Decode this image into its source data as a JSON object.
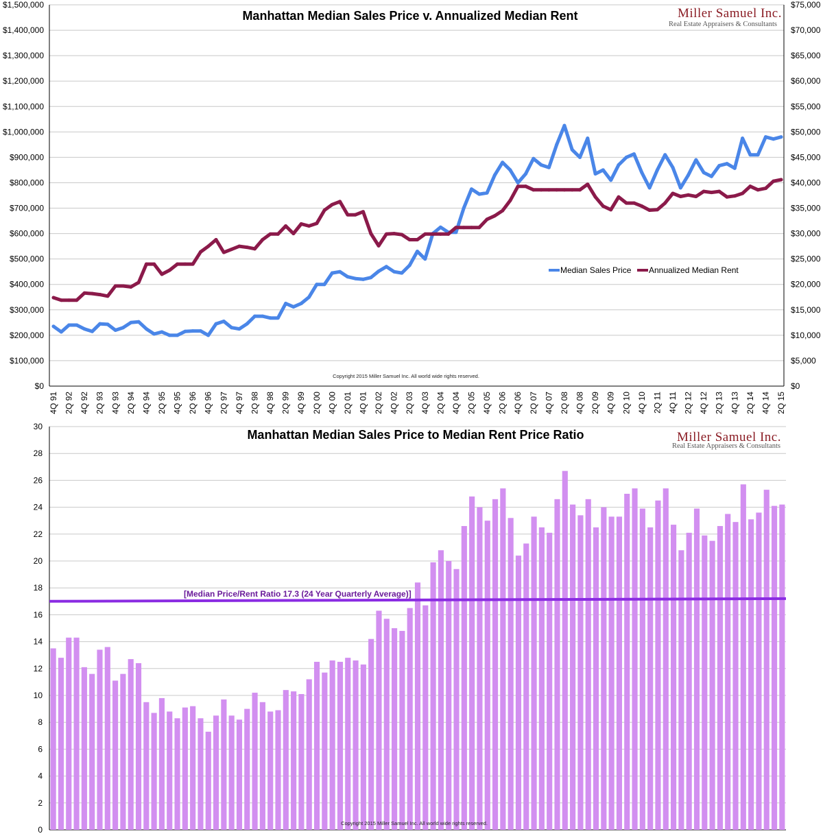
{
  "chart_data": [
    {
      "type": "line",
      "title": "Manhattan Median Sales Price v. Annualized Median Rent",
      "brand": {
        "name": "Miller Samuel Inc.",
        "tagline": "Real Estate Appraisers & Consultants"
      },
      "copyright": "Copyright 2015 Miller Samuel Inc. All world wide rights reserved.",
      "x_tick_labels": [
        "4Q 91",
        "2Q 92",
        "4Q 92",
        "2Q 93",
        "4Q 93",
        "2Q 94",
        "4Q 94",
        "2Q 95",
        "4Q 95",
        "2Q 96",
        "4Q 96",
        "2Q 97",
        "4Q 97",
        "2Q 98",
        "4Q 98",
        "2Q 99",
        "4Q 99",
        "2Q 00",
        "4Q 00",
        "2Q 01",
        "4Q 01",
        "2Q 02",
        "4Q 02",
        "2Q 03",
        "4Q 03",
        "2Q 04",
        "4Q 04",
        "2Q 05",
        "4Q 05",
        "2Q 06",
        "4Q 06",
        "2Q 07",
        "4Q 07",
        "2Q 08",
        "4Q 08",
        "2Q 09",
        "4Q 09",
        "2Q 10",
        "4Q 10",
        "2Q 11",
        "4Q 11",
        "2Q 12",
        "4Q 12",
        "2Q 13",
        "4Q 13",
        "2Q 14",
        "4Q 14",
        "2Q 15"
      ],
      "y_left": {
        "min": 0,
        "max": 1500000,
        "step": 100000,
        "tick_labels": [
          "$0",
          "$100,000",
          "$200,000",
          "$300,000",
          "$400,000",
          "$500,000",
          "$600,000",
          "$700,000",
          "$800,000",
          "$900,000",
          "$1,000,000",
          "$1,100,000",
          "$1,200,000",
          "$1,300,000",
          "$1,400,000",
          "$1,500,000"
        ]
      },
      "y_right": {
        "min": 0,
        "max": 75000,
        "step": 5000,
        "tick_labels": [
          "$0",
          "$5,000",
          "$10,000",
          "$15,000",
          "$20,000",
          "$25,000",
          "$30,000",
          "$35,000",
          "$40,000",
          "$45,000",
          "$50,000",
          "$55,000",
          "$60,000",
          "$65,000",
          "$70,000",
          "$75,000"
        ]
      },
      "legend_position": "right, inside plot",
      "series": [
        {
          "name": "Median Sales Price",
          "axis": "left",
          "color": "#4a86e8",
          "values": [
            235000,
            213000,
            240000,
            240000,
            225000,
            215000,
            245000,
            243000,
            220000,
            230000,
            250000,
            253000,
            225000,
            205000,
            213000,
            200000,
            200000,
            215000,
            217000,
            217000,
            200000,
            245000,
            255000,
            230000,
            225000,
            245000,
            275000,
            275000,
            268000,
            268000,
            325000,
            312000,
            325000,
            350000,
            400000,
            400000,
            445000,
            450000,
            430000,
            423000,
            420000,
            427000,
            452000,
            470000,
            450000,
            445000,
            475000,
            530000,
            500000,
            600000,
            625000,
            605000,
            605000,
            700000,
            775000,
            755000,
            760000,
            830000,
            880000,
            850000,
            800000,
            835000,
            895000,
            870000,
            860000,
            950000,
            1025000,
            930000,
            900000,
            975000,
            835000,
            850000,
            810000,
            870000,
            900000,
            913000,
            840000,
            780000,
            850000,
            910000,
            860000,
            780000,
            830000,
            890000,
            840000,
            825000,
            867000,
            875000,
            857000,
            975000,
            910000,
            910000,
            980000,
            972000,
            980000
          ]
        },
        {
          "name": "Annualized Median Rent",
          "axis": "right",
          "color": "#8b1a4a",
          "values": [
            17400,
            16900,
            16900,
            16900,
            18300,
            18200,
            18000,
            17700,
            19700,
            19700,
            19500,
            20400,
            24000,
            24000,
            22000,
            22800,
            24000,
            24000,
            24000,
            26400,
            27500,
            28800,
            26300,
            26900,
            27500,
            27300,
            27000,
            28800,
            29900,
            29900,
            31500,
            30000,
            31900,
            31500,
            32000,
            34600,
            35700,
            36300,
            33700,
            33700,
            34300,
            30000,
            27600,
            29900,
            30000,
            29800,
            28800,
            28800,
            29900,
            29900,
            29900,
            29900,
            31200,
            31200,
            31200,
            31200,
            32800,
            33500,
            34500,
            36500,
            39300,
            39300,
            38600,
            38600,
            38600,
            38600,
            38600,
            38600,
            38600,
            39700,
            37200,
            35400,
            34700,
            37200,
            36000,
            36000,
            35400,
            34600,
            34700,
            36000,
            37900,
            37300,
            37600,
            37300,
            38300,
            38100,
            38300,
            37200,
            37400,
            37900,
            39300,
            38600,
            38900,
            40300,
            40600
          ]
        }
      ]
    },
    {
      "type": "bar",
      "title": "Manhattan Median Sales Price to Median Rent Price Ratio",
      "brand": {
        "name": "Miller Samuel Inc.",
        "tagline": "Real Estate Appraisers & Consultants"
      },
      "copyright": "Copyright 2015 Miller Samuel Inc. All world wide rights reserved.",
      "y": {
        "min": 0,
        "max": 30,
        "step": 2,
        "tick_labels": [
          "0",
          "2",
          "4",
          "6",
          "8",
          "10",
          "12",
          "14",
          "16",
          "18",
          "20",
          "22",
          "24",
          "26",
          "28",
          "30"
        ]
      },
      "bar_color": "#d28ff0",
      "values": [
        13.5,
        12.8,
        14.3,
        14.3,
        12.1,
        11.6,
        13.4,
        13.6,
        11.1,
        11.6,
        12.7,
        12.4,
        9.5,
        8.7,
        9.8,
        8.8,
        8.3,
        9.1,
        9.2,
        8.3,
        7.3,
        8.5,
        9.7,
        8.5,
        8.2,
        9.0,
        10.2,
        9.5,
        8.8,
        8.9,
        10.4,
        10.3,
        10.1,
        11.2,
        12.5,
        11.7,
        12.6,
        12.5,
        12.8,
        12.6,
        12.3,
        14.2,
        16.3,
        15.7,
        15.0,
        14.8,
        16.5,
        18.4,
        16.7,
        19.9,
        20.8,
        20.0,
        19.4,
        22.6,
        24.8,
        24.0,
        23.0,
        24.6,
        25.4,
        23.2,
        20.4,
        21.3,
        23.3,
        22.5,
        22.1,
        24.6,
        26.7,
        24.2,
        23.4,
        24.6,
        22.5,
        24.0,
        23.3,
        23.3,
        25.0,
        25.4,
        23.9,
        22.5,
        24.5,
        25.4,
        22.7,
        20.8,
        22.1,
        23.9,
        21.9,
        21.5,
        22.6,
        23.5,
        22.9,
        25.7,
        23.1,
        23.6,
        25.3,
        24.1,
        24.2
      ],
      "average_line": {
        "label": "[Median Price/Rent Ratio 17.3 (24 Year Quarterly Average)]",
        "color": "#8a2be2",
        "start": 17.0,
        "end": 17.2
      }
    }
  ]
}
